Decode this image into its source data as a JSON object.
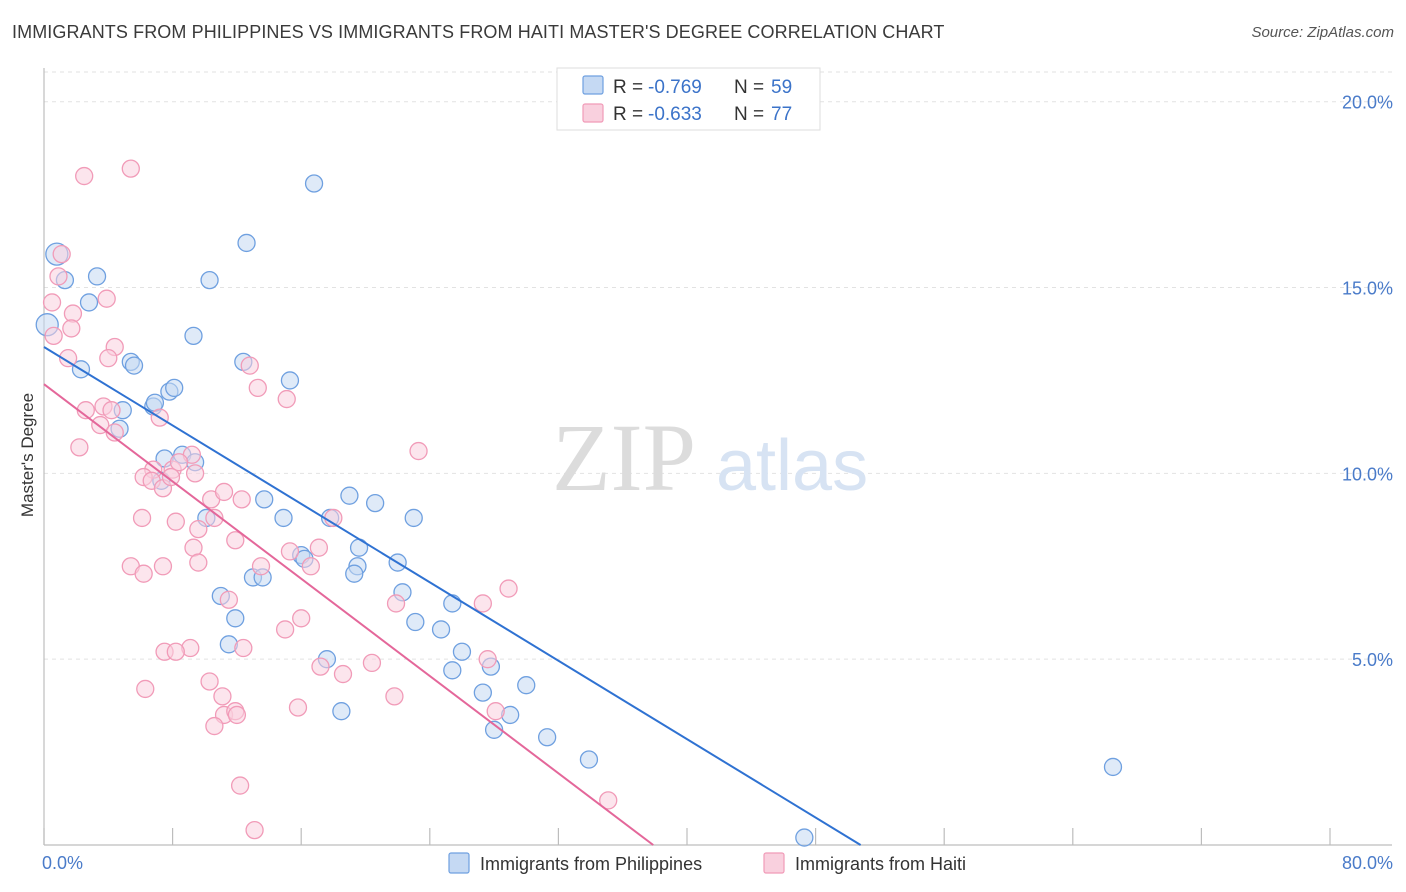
{
  "header": {
    "title": "IMMIGRANTS FROM PHILIPPINES VS IMMIGRANTS FROM HAITI MASTER'S DEGREE CORRELATION CHART",
    "source": "Source: ZipAtlas.com"
  },
  "watermark": {
    "zip": "ZIP",
    "atlas": "atlas"
  },
  "chart_data": {
    "type": "scatter",
    "title": "IMMIGRANTS FROM PHILIPPINES VS IMMIGRANTS FROM HAITI MASTER'S DEGREE CORRELATION CHART",
    "ylabel": "Master's Degree",
    "xlabel": "",
    "xlim": [
      0,
      80
    ],
    "ylim": [
      0,
      20.8
    ],
    "x_tick_labels": {
      "min": "0.0%",
      "max": "80.0%"
    },
    "y_ticks": [
      {
        "value": 5,
        "label": "5.0%"
      },
      {
        "value": 10,
        "label": "10.0%"
      },
      {
        "value": 15,
        "label": "15.0%"
      },
      {
        "value": 20,
        "label": "20.0%"
      }
    ],
    "legend": {
      "rows": [
        {
          "r_label": "R = ",
          "r_value": "-0.769",
          "n_label": "N = ",
          "n_value": "59"
        },
        {
          "r_label": "R = ",
          "r_value": "-0.633",
          "n_label": "N = ",
          "n_value": "77"
        }
      ]
    },
    "series": [
      {
        "name": "Immigrants from Philippines",
        "color": "#6fa0e0",
        "fill": "#c5d9f3",
        "line_color": "#2f72d2",
        "trend": {
          "x0": 0,
          "y0": 13.4,
          "x1": 50.8,
          "y1": 0
        },
        "points": [
          [
            0.2,
            14.0
          ],
          [
            0.8,
            15.9
          ],
          [
            1.3,
            15.2
          ],
          [
            3.3,
            15.3
          ],
          [
            2.8,
            14.6
          ],
          [
            2.3,
            12.8
          ],
          [
            4.7,
            11.2
          ],
          [
            4.9,
            11.7
          ],
          [
            5.4,
            13.0
          ],
          [
            6.8,
            11.8
          ],
          [
            5.6,
            12.9
          ],
          [
            7.8,
            12.2
          ],
          [
            8.1,
            12.3
          ],
          [
            6.9,
            11.9
          ],
          [
            9.3,
            13.7
          ],
          [
            10.3,
            15.2
          ],
          [
            12.6,
            16.2
          ],
          [
            16.8,
            17.8
          ],
          [
            7.5,
            10.4
          ],
          [
            8.6,
            10.5
          ],
          [
            12.4,
            13.0
          ],
          [
            15.3,
            12.5
          ],
          [
            9.4,
            10.3
          ],
          [
            7.3,
            9.8
          ],
          [
            13.7,
            9.3
          ],
          [
            14.9,
            8.8
          ],
          [
            17.8,
            8.8
          ],
          [
            19.0,
            9.4
          ],
          [
            20.6,
            9.2
          ],
          [
            23.0,
            8.8
          ],
          [
            10.1,
            8.8
          ],
          [
            16.0,
            7.8
          ],
          [
            16.2,
            7.7
          ],
          [
            13.0,
            7.2
          ],
          [
            13.6,
            7.2
          ],
          [
            19.6,
            8.0
          ],
          [
            19.5,
            7.5
          ],
          [
            22.0,
            7.6
          ],
          [
            19.3,
            7.3
          ],
          [
            11.0,
            6.7
          ],
          [
            22.3,
            6.8
          ],
          [
            11.9,
            6.1
          ],
          [
            23.1,
            6.0
          ],
          [
            24.7,
            5.8
          ],
          [
            25.4,
            6.5
          ],
          [
            26.0,
            5.2
          ],
          [
            25.4,
            4.7
          ],
          [
            27.8,
            4.8
          ],
          [
            11.5,
            5.4
          ],
          [
            17.6,
            5.0
          ],
          [
            27.3,
            4.1
          ],
          [
            30.0,
            4.3
          ],
          [
            29.0,
            3.5
          ],
          [
            18.5,
            3.6
          ],
          [
            28.0,
            3.1
          ],
          [
            31.3,
            2.9
          ],
          [
            33.9,
            2.3
          ],
          [
            47.3,
            0.2
          ],
          [
            66.5,
            2.1
          ]
        ]
      },
      {
        "name": "Immigrants from Haiti",
        "color": "#f19bb8",
        "fill": "#f9d0de",
        "line_color": "#e4679a",
        "trend": {
          "x0": 0,
          "y0": 12.4,
          "x1": 37.9,
          "y1": 0
        },
        "points": [
          [
            2.5,
            18.0
          ],
          [
            5.4,
            18.2
          ],
          [
            1.1,
            15.9
          ],
          [
            0.5,
            14.6
          ],
          [
            1.8,
            14.3
          ],
          [
            0.6,
            13.7
          ],
          [
            1.7,
            13.9
          ],
          [
            0.9,
            15.3
          ],
          [
            3.9,
            14.7
          ],
          [
            4.4,
            13.4
          ],
          [
            1.5,
            13.1
          ],
          [
            4.0,
            13.1
          ],
          [
            2.6,
            11.7
          ],
          [
            2.2,
            10.7
          ],
          [
            3.5,
            11.3
          ],
          [
            3.7,
            11.8
          ],
          [
            4.4,
            11.1
          ],
          [
            4.2,
            11.7
          ],
          [
            7.2,
            11.5
          ],
          [
            6.8,
            10.1
          ],
          [
            6.2,
            9.9
          ],
          [
            6.7,
            9.8
          ],
          [
            7.4,
            9.6
          ],
          [
            8.0,
            10.1
          ],
          [
            9.2,
            10.5
          ],
          [
            8.4,
            10.3
          ],
          [
            7.9,
            9.9
          ],
          [
            9.4,
            10.0
          ],
          [
            6.1,
            8.8
          ],
          [
            8.2,
            8.7
          ],
          [
            9.6,
            8.5
          ],
          [
            10.4,
            9.3
          ],
          [
            10.6,
            8.8
          ],
          [
            11.2,
            9.5
          ],
          [
            11.9,
            8.2
          ],
          [
            12.3,
            9.3
          ],
          [
            12.8,
            12.9
          ],
          [
            13.3,
            12.3
          ],
          [
            15.1,
            12.0
          ],
          [
            15.3,
            7.9
          ],
          [
            5.4,
            7.5
          ],
          [
            6.2,
            7.3
          ],
          [
            7.4,
            7.5
          ],
          [
            9.3,
            8.0
          ],
          [
            9.6,
            7.6
          ],
          [
            13.5,
            7.5
          ],
          [
            16.6,
            7.5
          ],
          [
            17.1,
            8.0
          ],
          [
            18.0,
            8.8
          ],
          [
            23.3,
            10.6
          ],
          [
            21.9,
            6.5
          ],
          [
            27.3,
            6.5
          ],
          [
            28.9,
            6.9
          ],
          [
            11.5,
            6.6
          ],
          [
            15.0,
            5.8
          ],
          [
            10.3,
            4.4
          ],
          [
            11.1,
            4.0
          ],
          [
            12.4,
            5.3
          ],
          [
            7.5,
            5.2
          ],
          [
            9.1,
            5.3
          ],
          [
            6.3,
            4.2
          ],
          [
            17.2,
            4.8
          ],
          [
            18.6,
            4.6
          ],
          [
            20.4,
            4.9
          ],
          [
            21.8,
            4.0
          ],
          [
            27.6,
            5.0
          ],
          [
            15.8,
            3.7
          ],
          [
            11.2,
            3.5
          ],
          [
            11.9,
            3.6
          ],
          [
            28.1,
            3.6
          ],
          [
            12.0,
            3.5
          ],
          [
            12.2,
            1.6
          ],
          [
            10.6,
            3.2
          ],
          [
            13.1,
            0.4
          ],
          [
            35.1,
            1.2
          ],
          [
            8.2,
            5.2
          ],
          [
            16.0,
            6.1
          ]
        ]
      }
    ]
  }
}
